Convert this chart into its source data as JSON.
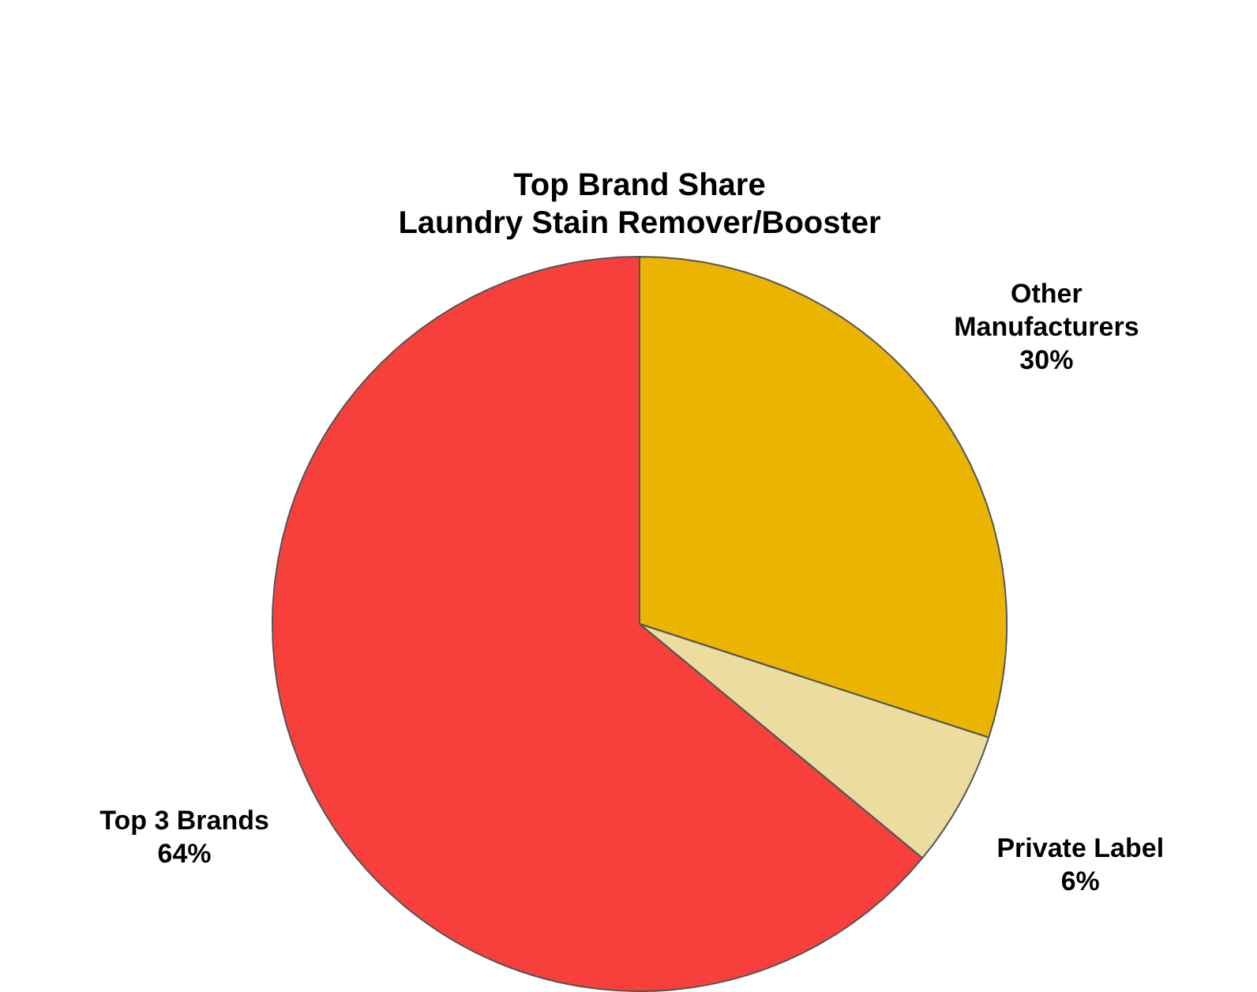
{
  "chart_data": {
    "type": "pie",
    "title": [
      "Top Brand Share",
      "Laundry Stain Remover/Booster"
    ],
    "categories": [
      "Other Manufacturers",
      "Private Label",
      "Top 3 Brands"
    ],
    "values": [
      30,
      6,
      64
    ],
    "colors": [
      "#ebb400",
      "#ebdda0",
      "#f7403c"
    ],
    "value_labels": [
      "30%",
      "6%",
      "64%"
    ],
    "legend": false
  }
}
